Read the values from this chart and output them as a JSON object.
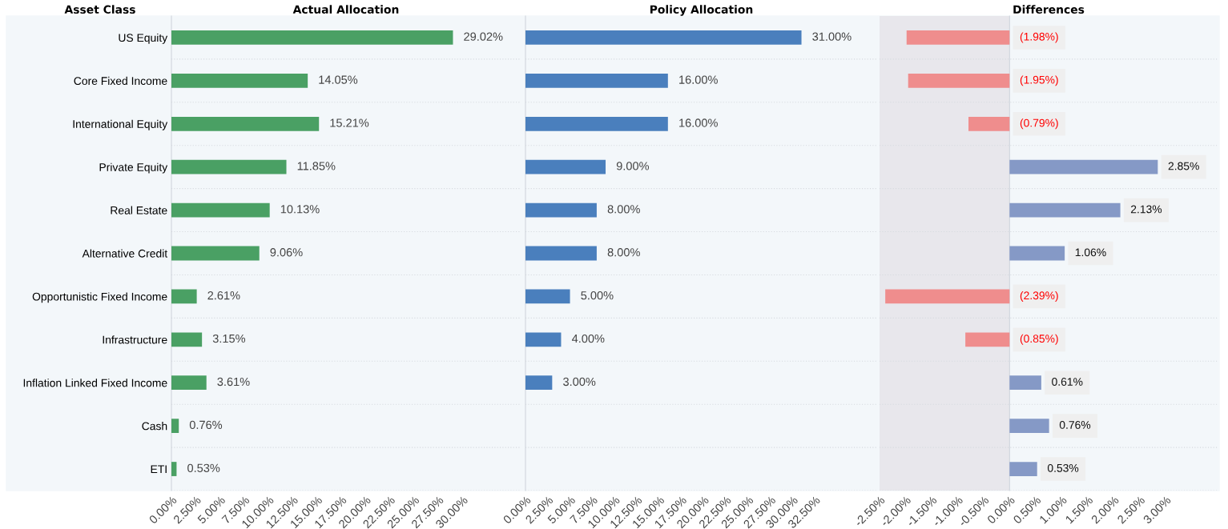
{
  "chart_data": [
    {
      "type": "bar",
      "orientation": "horizontal",
      "title": "Actual Allocation",
      "ylabel": "Asset Class",
      "categories": [
        "US Equity",
        "Core Fixed Income",
        "International Equity",
        "Private Equity",
        "Real Estate",
        "Alternative Credit",
        "Opportunistic Fixed Income",
        "Infrastructure",
        "Inflation Linked Fixed Income",
        "Cash",
        "ETI"
      ],
      "values": [
        29.02,
        14.05,
        15.21,
        11.85,
        10.13,
        9.06,
        2.61,
        3.15,
        3.61,
        0.76,
        0.53
      ],
      "value_labels": [
        "29.02%",
        "14.05%",
        "15.21%",
        "11.85%",
        "10.13%",
        "9.06%",
        "2.61%",
        "3.15%",
        "3.61%",
        "0.76%",
        "0.53%"
      ],
      "color": "#4aa064",
      "xlim": [
        0,
        36
      ],
      "xticks": [
        {
          "value": 0,
          "label": "0.00%"
        },
        {
          "value": 2.5,
          "label": "2.50%"
        },
        {
          "value": 5,
          "label": "5.00%"
        },
        {
          "value": 7.5,
          "label": "7.50%"
        },
        {
          "value": 10,
          "label": "10.00%"
        },
        {
          "value": 12.5,
          "label": "12.50%"
        },
        {
          "value": 15,
          "label": "15.00%"
        },
        {
          "value": 17.5,
          "label": "17.50%"
        },
        {
          "value": 20,
          "label": "20.00%"
        },
        {
          "value": 22.5,
          "label": "22.50%"
        },
        {
          "value": 25,
          "label": "25.00%"
        },
        {
          "value": 27.5,
          "label": "27.50%"
        },
        {
          "value": 30,
          "label": "30.00%"
        }
      ],
      "grid": "y"
    },
    {
      "type": "bar",
      "orientation": "horizontal",
      "title": "Policy Allocation",
      "tick_labels": "x",
      "categories": [
        null,
        null,
        null,
        null,
        null,
        null,
        null,
        null,
        null,
        null,
        null
      ],
      "values": [
        31.0,
        16.0,
        16.0,
        9.0,
        8.0,
        8.0,
        5.0,
        4.0,
        3.0,
        null,
        null
      ],
      "value_labels": [
        "31.00%",
        "16.00%",
        "16.00%",
        "9.00%",
        "8.00%",
        "8.00%",
        "5.00%",
        "4.00%",
        "3.00%",
        null,
        null
      ],
      "color": "#4a7fbd",
      "xlim": [
        0,
        39.5
      ],
      "xticks": [
        {
          "value": 0,
          "label": "0.00%"
        },
        {
          "value": 2.5,
          "label": "2.50%"
        },
        {
          "value": 5,
          "label": "5.00%"
        },
        {
          "value": 7.5,
          "label": "7.50%"
        },
        {
          "value": 10,
          "label": "10.00%"
        },
        {
          "value": 12.5,
          "label": "12.50%"
        },
        {
          "value": 15,
          "label": "15.00%"
        },
        {
          "value": 17.5,
          "label": "17.50%"
        },
        {
          "value": 20,
          "label": "20.00%"
        },
        {
          "value": 22.5,
          "label": "22.50%"
        },
        {
          "value": 25,
          "label": "25.00%"
        },
        {
          "value": 27.5,
          "label": "27.50%"
        },
        {
          "value": 30,
          "label": "30.00%"
        },
        {
          "value": 32.5,
          "label": "32.50%"
        }
      ],
      "grid": "y"
    },
    {
      "type": "bar",
      "orientation": "horizontal",
      "title": "Differences",
      "tick_labels": "x",
      "categories": [
        null,
        null,
        null,
        null,
        null,
        null,
        null,
        null,
        null,
        null,
        null
      ],
      "values": [
        -1.98,
        -1.95,
        -0.79,
        2.85,
        2.13,
        1.06,
        -2.39,
        -0.85,
        0.61,
        0.76,
        0.53
      ],
      "value_labels": [
        "(1.98%)",
        "(1.95%)",
        "(0.79%)",
        "2.85%",
        "2.13%",
        "1.06%",
        "(2.39%)",
        "(0.85%)",
        "0.61%",
        "0.76%",
        "0.53%"
      ],
      "colors": [
        "#ef8d8d",
        "#ef8d8d",
        "#ef8d8d",
        "#8599c6",
        "#8599c6",
        "#8599c6",
        "#ef8d8d",
        "#ef8d8d",
        "#8599c6",
        "#8599c6",
        "#8599c6"
      ],
      "xlim": [
        -2.5,
        4
      ],
      "xticks": [
        {
          "value": -2.5,
          "label": "-2.50%"
        },
        {
          "value": -2,
          "label": "-2.00%"
        },
        {
          "value": -1.5,
          "label": "-1.50%"
        },
        {
          "value": -1,
          "label": "-1.00%"
        },
        {
          "value": -0.5,
          "label": "-0.50%"
        },
        {
          "value": 0,
          "label": "0.00%"
        },
        {
          "value": 0.5,
          "label": "0.50%"
        },
        {
          "value": 1,
          "label": "1.00%"
        },
        {
          "value": 1.5,
          "label": "1.50%"
        },
        {
          "value": 2,
          "label": "2.00%"
        },
        {
          "value": 2.5,
          "label": "2.50%"
        },
        {
          "value": 3,
          "label": "3.00%"
        }
      ],
      "bands": [
        {
          "axis": "x",
          "from": -2.5,
          "to": 0,
          "color": "#e8e7ec"
        }
      ],
      "grid": "y"
    }
  ]
}
